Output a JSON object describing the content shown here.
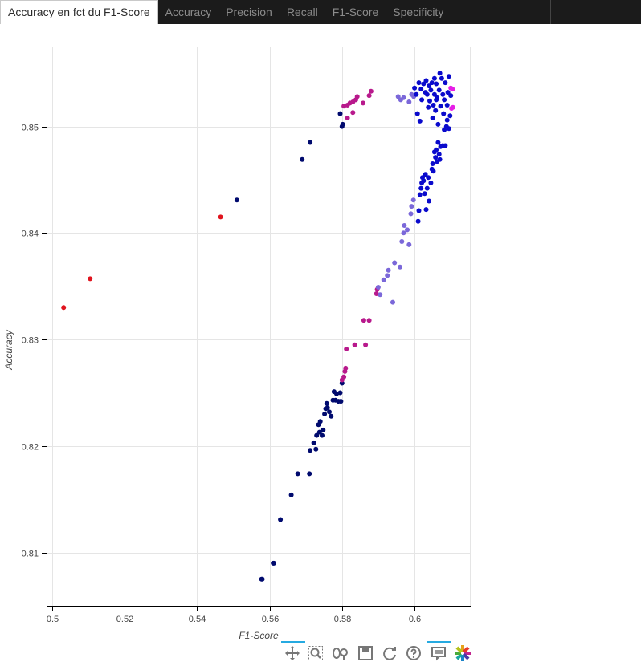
{
  "tabs": [
    {
      "label": "Accuracy en fct du F1-Score",
      "active": true
    },
    {
      "label": "Accuracy",
      "active": false
    },
    {
      "label": "Precision",
      "active": false
    },
    {
      "label": "Recall",
      "active": false
    },
    {
      "label": "F1-Score",
      "active": false
    },
    {
      "label": "Specificity",
      "active": false
    }
  ],
  "toolbar": {
    "tools": [
      "pan-icon",
      "box-zoom-icon",
      "wheel-zoom-icon",
      "save-icon",
      "reset-icon",
      "help-icon",
      "hover-icon",
      "bokeh-logo-icon"
    ],
    "active_color": "#26aae1"
  },
  "chart_data": {
    "type": "scatter",
    "title": "",
    "xlabel": "F1-Score",
    "ylabel": "Accuracy",
    "xlim": [
      0.4985,
      0.6155
    ],
    "ylim": [
      0.805,
      0.8575
    ],
    "x_ticks": [
      {
        "value": 0.5,
        "label": "0.5"
      },
      {
        "value": 0.52,
        "label": "0.52"
      },
      {
        "value": 0.54,
        "label": "0.54"
      },
      {
        "value": 0.56,
        "label": "0.56"
      },
      {
        "value": 0.58,
        "label": "0.58"
      },
      {
        "value": 0.6,
        "label": "0.6"
      }
    ],
    "y_ticks": [
      {
        "value": 0.81,
        "label": "0.81"
      },
      {
        "value": 0.82,
        "label": "0.82"
      },
      {
        "value": 0.83,
        "label": "0.83"
      },
      {
        "value": 0.84,
        "label": "0.84"
      },
      {
        "value": 0.85,
        "label": "0.85"
      }
    ],
    "grid": true,
    "colors": {
      "red": "#e0141e",
      "navy": "#000a6e",
      "blue": "#0a0acc",
      "slate": "#7b68d9",
      "violet": "#b8198c",
      "magenta": "#e61ee6"
    },
    "series": [
      {
        "color": "red",
        "points": [
          [
            0.5032,
            0.833
          ],
          [
            0.5105,
            0.8357
          ],
          [
            0.5465,
            0.8415
          ]
        ]
      },
      {
        "color": "navy",
        "points": [
          [
            0.5578,
            0.8075
          ],
          [
            0.558,
            0.8075
          ],
          [
            0.561,
            0.809
          ],
          [
            0.5612,
            0.809
          ],
          [
            0.563,
            0.8131
          ],
          [
            0.566,
            0.8154
          ],
          [
            0.5678,
            0.8174
          ],
          [
            0.571,
            0.8174
          ],
          [
            0.5712,
            0.8196
          ],
          [
            0.5722,
            0.8203
          ],
          [
            0.5728,
            0.8197
          ],
          [
            0.573,
            0.821
          ],
          [
            0.5735,
            0.822
          ],
          [
            0.5738,
            0.8213
          ],
          [
            0.574,
            0.8223
          ],
          [
            0.5745,
            0.821
          ],
          [
            0.5748,
            0.8215
          ],
          [
            0.5752,
            0.823
          ],
          [
            0.5755,
            0.8235
          ],
          [
            0.5758,
            0.824
          ],
          [
            0.576,
            0.8236
          ],
          [
            0.5765,
            0.8232
          ],
          [
            0.577,
            0.8228
          ],
          [
            0.5775,
            0.8243
          ],
          [
            0.5778,
            0.8251
          ],
          [
            0.5782,
            0.8243
          ],
          [
            0.5785,
            0.8249
          ],
          [
            0.579,
            0.8242
          ],
          [
            0.5795,
            0.825
          ],
          [
            0.5797,
            0.8242
          ],
          [
            0.58,
            0.8259
          ],
          [
            0.551,
            0.8431
          ],
          [
            0.569,
            0.8469
          ],
          [
            0.5712,
            0.8485
          ],
          [
            0.5795,
            0.8512
          ],
          [
            0.58,
            0.85
          ],
          [
            0.5802,
            0.8502
          ]
        ]
      },
      {
        "color": "violet",
        "points": [
          [
            0.58,
            0.8262
          ],
          [
            0.5805,
            0.8265
          ],
          [
            0.5808,
            0.827
          ],
          [
            0.581,
            0.8273
          ],
          [
            0.5812,
            0.8291
          ],
          [
            0.5835,
            0.8295
          ],
          [
            0.586,
            0.8318
          ],
          [
            0.5865,
            0.8295
          ],
          [
            0.5875,
            0.8318
          ],
          [
            0.5895,
            0.8343
          ],
          [
            0.5897,
            0.8347
          ],
          [
            0.5805,
            0.8519
          ],
          [
            0.5815,
            0.852
          ],
          [
            0.5822,
            0.8522
          ],
          [
            0.583,
            0.8523
          ],
          [
            0.5838,
            0.8525
          ],
          [
            0.5842,
            0.8528
          ],
          [
            0.5858,
            0.8522
          ],
          [
            0.5875,
            0.8529
          ],
          [
            0.588,
            0.8533
          ],
          [
            0.583,
            0.8513
          ],
          [
            0.5815,
            0.8508
          ]
        ]
      },
      {
        "color": "slate",
        "points": [
          [
            0.59,
            0.8349
          ],
          [
            0.5905,
            0.8342
          ],
          [
            0.5915,
            0.8356
          ],
          [
            0.5925,
            0.836
          ],
          [
            0.5928,
            0.8365
          ],
          [
            0.594,
            0.8335
          ],
          [
            0.5945,
            0.8372
          ],
          [
            0.596,
            0.8368
          ],
          [
            0.5965,
            0.8392
          ],
          [
            0.597,
            0.84
          ],
          [
            0.5972,
            0.8407
          ],
          [
            0.598,
            0.8403
          ],
          [
            0.5985,
            0.8389
          ],
          [
            0.599,
            0.8418
          ],
          [
            0.5992,
            0.8425
          ],
          [
            0.5997,
            0.8431
          ],
          [
            0.5955,
            0.8528
          ],
          [
            0.5962,
            0.8525
          ],
          [
            0.597,
            0.8527
          ],
          [
            0.5985,
            0.8523
          ],
          [
            0.5992,
            0.853
          ],
          [
            0.5998,
            0.8528
          ]
        ]
      },
      {
        "color": "blue",
        "points": [
          [
            0.601,
            0.8411
          ],
          [
            0.6012,
            0.8421
          ],
          [
            0.6015,
            0.8436
          ],
          [
            0.6018,
            0.8442
          ],
          [
            0.602,
            0.8447
          ],
          [
            0.6022,
            0.8452
          ],
          [
            0.6025,
            0.8449
          ],
          [
            0.6028,
            0.8437
          ],
          [
            0.603,
            0.8455
          ],
          [
            0.6032,
            0.8422
          ],
          [
            0.6035,
            0.8442
          ],
          [
            0.6038,
            0.8452
          ],
          [
            0.604,
            0.843
          ],
          [
            0.6045,
            0.8447
          ],
          [
            0.6048,
            0.846
          ],
          [
            0.605,
            0.8465
          ],
          [
            0.6052,
            0.8458
          ],
          [
            0.6055,
            0.8476
          ],
          [
            0.6058,
            0.8471
          ],
          [
            0.606,
            0.8478
          ],
          [
            0.6062,
            0.8467
          ],
          [
            0.6065,
            0.8485
          ],
          [
            0.6068,
            0.8474
          ],
          [
            0.607,
            0.8469
          ],
          [
            0.6072,
            0.8481
          ],
          [
            0.6078,
            0.8482
          ],
          [
            0.6085,
            0.8482
          ],
          [
            0.6,
            0.8536
          ],
          [
            0.6005,
            0.853
          ],
          [
            0.6008,
            0.8512
          ],
          [
            0.6012,
            0.8541
          ],
          [
            0.6015,
            0.8505
          ],
          [
            0.6018,
            0.8535
          ],
          [
            0.602,
            0.8525
          ],
          [
            0.6025,
            0.854
          ],
          [
            0.603,
            0.8532
          ],
          [
            0.6032,
            0.8543
          ],
          [
            0.6035,
            0.853
          ],
          [
            0.6038,
            0.8518
          ],
          [
            0.604,
            0.8538
          ],
          [
            0.6042,
            0.8524
          ],
          [
            0.6045,
            0.8534
          ],
          [
            0.6048,
            0.8541
          ],
          [
            0.605,
            0.8508
          ],
          [
            0.6052,
            0.852
          ],
          [
            0.6055,
            0.853
          ],
          [
            0.6058,
            0.8515
          ],
          [
            0.606,
            0.854
          ],
          [
            0.6062,
            0.8527
          ],
          [
            0.6065,
            0.8502
          ],
          [
            0.6068,
            0.8534
          ],
          [
            0.607,
            0.855
          ],
          [
            0.6072,
            0.8519
          ],
          [
            0.6075,
            0.8545
          ],
          [
            0.6078,
            0.853
          ],
          [
            0.608,
            0.8512
          ],
          [
            0.6082,
            0.8525
          ],
          [
            0.6085,
            0.8541
          ],
          [
            0.6088,
            0.85
          ],
          [
            0.609,
            0.852
          ],
          [
            0.6092,
            0.8532
          ],
          [
            0.6095,
            0.8547
          ],
          [
            0.6098,
            0.851
          ],
          [
            0.61,
            0.8529
          ],
          [
            0.6055,
            0.8545
          ],
          [
            0.606,
            0.8525
          ],
          [
            0.6082,
            0.8497
          ],
          [
            0.6095,
            0.8498
          ],
          [
            0.609,
            0.8506
          ]
        ]
      },
      {
        "color": "magenta",
        "points": [
          [
            0.61,
            0.8536
          ],
          [
            0.6105,
            0.8535
          ],
          [
            0.6102,
            0.8517
          ],
          [
            0.6106,
            0.8518
          ]
        ]
      }
    ]
  }
}
